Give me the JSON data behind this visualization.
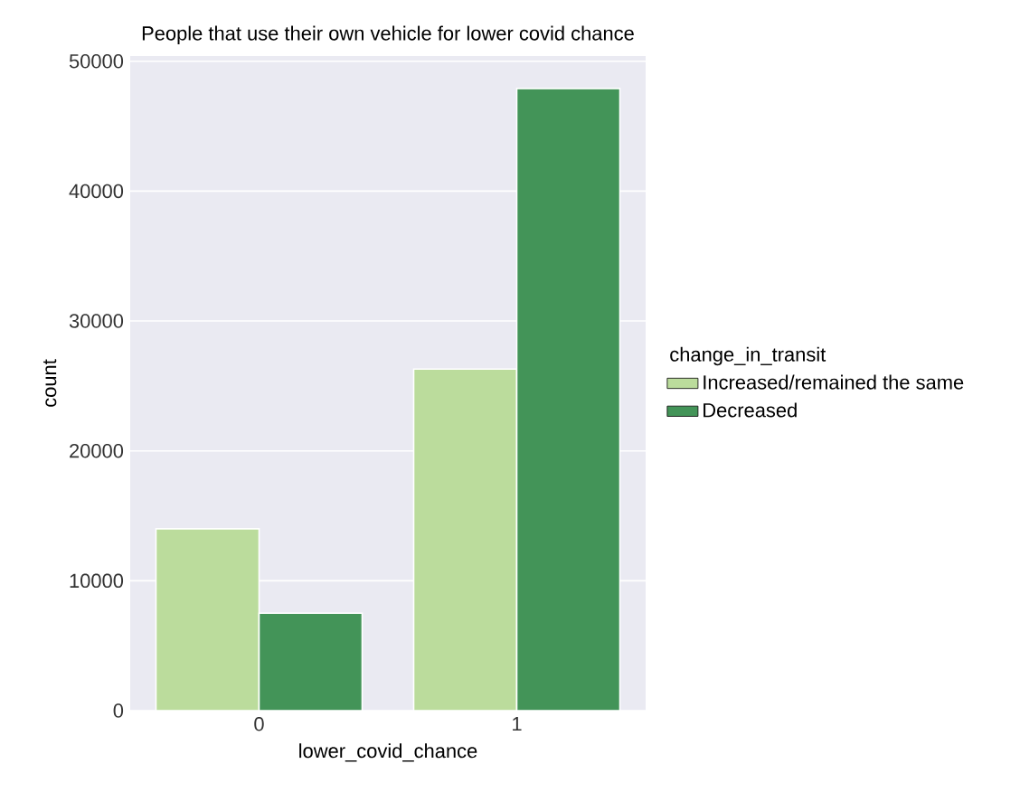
{
  "chart_data": {
    "type": "bar",
    "title": "People that use their own vehicle for lower covid chance",
    "xlabel": "lower_covid_chance",
    "ylabel": "count",
    "legend_title": "change_in_transit",
    "categories": [
      "0",
      "1"
    ],
    "series": [
      {
        "name": "Increased/remained the same",
        "color": "#bbdc9c",
        "values": [
          14000,
          26300
        ]
      },
      {
        "name": "Decreased",
        "color": "#439458",
        "values": [
          7500,
          47900
        ]
      }
    ],
    "ylim": [
      0,
      50400
    ],
    "yticks": [
      0,
      10000,
      20000,
      30000,
      40000,
      50000
    ],
    "grid": "y",
    "legend": "right"
  }
}
